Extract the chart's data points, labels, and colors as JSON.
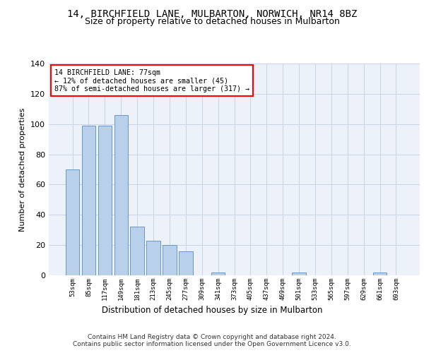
{
  "title_line1": "14, BIRCHFIELD LANE, MULBARTON, NORWICH, NR14 8BZ",
  "title_line2": "Size of property relative to detached houses in Mulbarton",
  "xlabel": "Distribution of detached houses by size in Mulbarton",
  "ylabel": "Number of detached properties",
  "categories": [
    "53sqm",
    "85sqm",
    "117sqm",
    "149sqm",
    "181sqm",
    "213sqm",
    "245sqm",
    "277sqm",
    "309sqm",
    "341sqm",
    "373sqm",
    "405sqm",
    "437sqm",
    "469sqm",
    "501sqm",
    "533sqm",
    "565sqm",
    "597sqm",
    "629sqm",
    "661sqm",
    "693sqm"
  ],
  "values": [
    70,
    99,
    99,
    106,
    32,
    23,
    20,
    16,
    0,
    2,
    0,
    0,
    0,
    0,
    2,
    0,
    0,
    0,
    0,
    2,
    0
  ],
  "bar_color": "#b8d0ea",
  "bar_edge_color": "#6897c8",
  "annotation_box_text": "14 BIRCHFIELD LANE: 77sqm\n← 12% of detached houses are smaller (45)\n87% of semi-detached houses are larger (317) →",
  "footer_text": "Contains HM Land Registry data © Crown copyright and database right 2024.\nContains public sector information licensed under the Open Government Licence v3.0.",
  "ylim": [
    0,
    140
  ],
  "yticks": [
    0,
    20,
    40,
    60,
    80,
    100,
    120,
    140
  ],
  "plot_bg_color": "#edf2fa",
  "grid_color": "#c8d4e8",
  "title_fontsize": 10,
  "subtitle_fontsize": 9
}
